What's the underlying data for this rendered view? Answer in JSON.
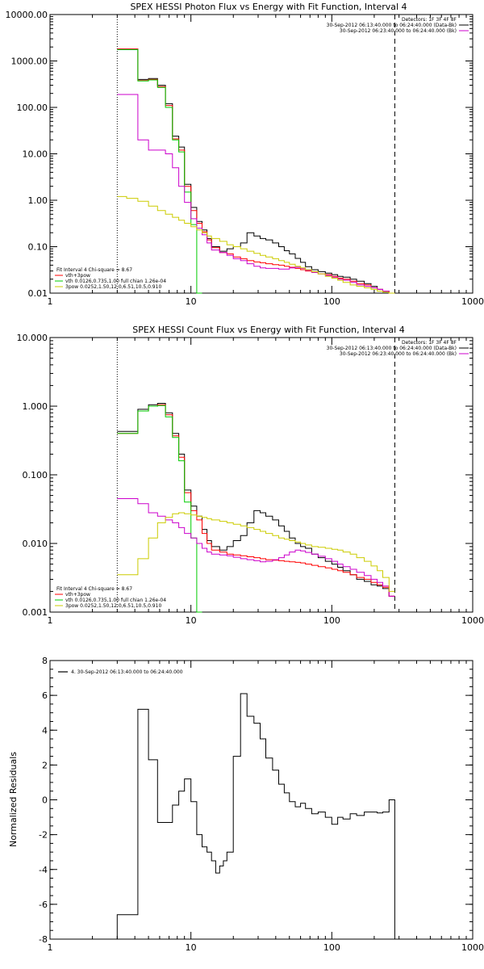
{
  "chart_data": [
    {
      "type": "line",
      "title": "SPEX HESSI Photon Flux vs Energy with Fit Function, Interval 4",
      "xscale": "log",
      "yscale": "log",
      "xlim": [
        1,
        1000
      ],
      "ylim": [
        0.01,
        10000
      ],
      "xticks": [
        1,
        10,
        100,
        1000
      ],
      "xtick_labels": [
        "1",
        "10",
        "100",
        "1000"
      ],
      "yticks": [
        0.01,
        0.1,
        1,
        10,
        100,
        1000,
        10000
      ],
      "ytick_labels": [
        "0.01",
        "0.10",
        "1.00",
        "10.00",
        "100.00",
        "1000.00",
        "10000.00"
      ],
      "vlines": [
        {
          "x": 3,
          "style": "dotted"
        },
        {
          "x": 280,
          "style": "dashed"
        }
      ],
      "legend_top": {
        "lines": [
          {
            "text": "Detectors: 1F 3F 4F 8F",
            "color": ""
          },
          {
            "text": "30-Sep-2012 06:13:40.000 to 06:24:40.000 (Data-Bk)",
            "color": "#000000"
          },
          {
            "text": "30-Sep-2012 06:23:40.000 to 06:24:40.000 (Bk)",
            "color": "#cc00cc"
          }
        ]
      },
      "legend_bottom": {
        "lines": [
          {
            "text": "Fit Interval  4   Chi-square = 8.67",
            "color": ""
          },
          {
            "text": "vth+3pow",
            "color": "#ff0000"
          },
          {
            "text": "vth  0.0126,0.735,1.00  full chian 1.26e-04",
            "color": "#00cc00"
          },
          {
            "text": "3pow  0.0252,1.50,12.0,6.51,10.5,0.910",
            "color": "#cccc00"
          }
        ]
      },
      "series": [
        {
          "color": "#000000",
          "edges": [
            3,
            3.5,
            4.2,
            5,
            5.8,
            6.6,
            7.4,
            8.2,
            9,
            10,
            11,
            12,
            13,
            14,
            16,
            18,
            20,
            22.5,
            25,
            28,
            31,
            34,
            38,
            42,
            46,
            50,
            55,
            60,
            65,
            72,
            80,
            90,
            100,
            110,
            120,
            135,
            150,
            170,
            190,
            210,
            230,
            255,
            280
          ],
          "values": [
            1800,
            1800,
            400,
            420,
            300,
            120,
            24,
            14,
            2.2,
            0.7,
            0.35,
            0.23,
            0.15,
            0.1,
            0.08,
            0.09,
            0.1,
            0.12,
            0.2,
            0.17,
            0.15,
            0.14,
            0.12,
            0.1,
            0.082,
            0.07,
            0.056,
            0.046,
            0.037,
            0.032,
            0.029,
            0.027,
            0.025,
            0.023,
            0.022,
            0.02,
            0.018,
            0.016,
            0.014,
            0.012,
            0.011,
            0.01
          ]
        },
        {
          "color": "#ff0000",
          "edges": [
            3,
            3.5,
            4.2,
            5,
            5.8,
            6.6,
            7.4,
            8.2,
            9,
            10,
            11,
            12,
            13,
            14,
            16,
            18,
            20,
            22.5,
            25,
            28,
            31,
            34,
            38,
            42,
            46,
            50,
            55,
            60,
            65,
            72,
            80,
            90,
            100,
            110,
            120,
            135,
            150,
            170,
            190,
            210,
            230,
            255,
            280
          ],
          "values": [
            1800,
            1800,
            380,
            400,
            280,
            110,
            21,
            12,
            2,
            0.6,
            0.32,
            0.21,
            0.14,
            0.095,
            0.075,
            0.07,
            0.06,
            0.055,
            0.05,
            0.047,
            0.045,
            0.043,
            0.041,
            0.04,
            0.038,
            0.036,
            0.034,
            0.032,
            0.03,
            0.028,
            0.026,
            0.025,
            0.023,
            0.021,
            0.02,
            0.018,
            0.016,
            0.015,
            0.013,
            0.012,
            0.011,
            0.01
          ]
        },
        {
          "color": "#00cc00",
          "edges": [
            3,
            3.5,
            4.2,
            5,
            5.8,
            6.6,
            7.4,
            8.2,
            9,
            10,
            11,
            12
          ],
          "values": [
            1750,
            1750,
            370,
            390,
            270,
            100,
            20,
            11,
            1.5,
            0.3,
            0.01
          ]
        },
        {
          "color": "#cc00cc",
          "edges": [
            3,
            3.5,
            4.2,
            5,
            5.8,
            6.6,
            7.4,
            8.2,
            9,
            10,
            11,
            12,
            13,
            14,
            16,
            18,
            20,
            22.5,
            25,
            28,
            31,
            34,
            38,
            42,
            46,
            50,
            55,
            60,
            65,
            72,
            80,
            90,
            100,
            110,
            120,
            135,
            150,
            170,
            190,
            210,
            230,
            255,
            280
          ],
          "values": [
            190,
            190,
            20,
            12,
            12,
            10,
            5,
            2,
            0.9,
            0.4,
            0.25,
            0.18,
            0.12,
            0.085,
            0.075,
            0.065,
            0.055,
            0.05,
            0.043,
            0.038,
            0.035,
            0.034,
            0.034,
            0.033,
            0.033,
            0.035,
            0.036,
            0.034,
            0.031,
            0.028,
            0.026,
            0.024,
            0.022,
            0.02,
            0.019,
            0.017,
            0.015,
            0.014,
            0.013,
            0.012,
            0.011,
            0.01
          ]
        },
        {
          "color": "#cccc00",
          "edges": [
            3,
            3.5,
            4.2,
            5,
            5.8,
            6.6,
            7.4,
            8.2,
            9,
            10,
            11,
            12,
            13,
            14,
            16,
            18,
            20,
            22.5,
            25,
            28,
            31,
            34,
            38,
            42,
            46,
            50,
            55,
            60,
            65,
            72,
            80,
            90,
            100,
            110,
            120,
            135,
            150,
            170,
            190,
            210,
            230,
            255,
            280
          ],
          "values": [
            1.2,
            1.1,
            0.95,
            0.75,
            0.6,
            0.5,
            0.43,
            0.37,
            0.32,
            0.27,
            0.23,
            0.2,
            0.17,
            0.15,
            0.13,
            0.11,
            0.1,
            0.09,
            0.08,
            0.072,
            0.065,
            0.06,
            0.055,
            0.05,
            0.046,
            0.042,
            0.038,
            0.035,
            0.032,
            0.029,
            0.026,
            0.023,
            0.021,
            0.019,
            0.017,
            0.015,
            0.014,
            0.013,
            0.012,
            0.011,
            0.0105,
            0.01
          ]
        }
      ]
    },
    {
      "type": "line",
      "title": "SPEX HESSI Count Flux vs Energy with Fit Function, Interval 4",
      "xscale": "log",
      "yscale": "log",
      "xlim": [
        1,
        1000
      ],
      "ylim": [
        0.001,
        10
      ],
      "xticks": [
        1,
        10,
        100,
        1000
      ],
      "xtick_labels": [
        "1",
        "10",
        "100",
        "1000"
      ],
      "yticks": [
        0.001,
        0.01,
        0.1,
        1,
        10
      ],
      "ytick_labels": [
        "0.001",
        "0.010",
        "0.100",
        "1.000",
        "10.000"
      ],
      "vlines": [
        {
          "x": 3,
          "style": "dotted"
        },
        {
          "x": 280,
          "style": "dashed"
        }
      ],
      "legend_top": {
        "lines": [
          {
            "text": "Detectors: 1F 3F 4F 8F",
            "color": ""
          },
          {
            "text": "30-Sep-2012 06:13:40.000 to 06:24:40.000 (Data-Bk)",
            "color": "#000000"
          },
          {
            "text": "30-Sep-2012 06:23:40.000 to 06:24:40.000 (Bk)",
            "color": "#cc00cc"
          }
        ]
      },
      "legend_bottom": {
        "lines": [
          {
            "text": "Fit Interval  4   Chi-square = 8.67",
            "color": ""
          },
          {
            "text": "vth+3pow",
            "color": "#ff0000"
          },
          {
            "text": "vth  0.0126,0.735,1.00  full chian 1.26e-04",
            "color": "#00cc00"
          },
          {
            "text": "3pow  0.0252,1.50,12.0,6.51,10.5,0.910",
            "color": "#cccc00"
          }
        ]
      },
      "series": [
        {
          "color": "#000000",
          "edges": [
            3,
            3.5,
            4.2,
            5,
            5.8,
            6.6,
            7.4,
            8.2,
            9,
            10,
            11,
            12,
            13,
            14,
            16,
            18,
            20,
            22.5,
            25,
            28,
            31,
            34,
            38,
            42,
            46,
            50,
            55,
            60,
            65,
            72,
            80,
            90,
            100,
            110,
            120,
            135,
            150,
            170,
            190,
            210,
            230,
            255,
            280
          ],
          "values": [
            0.43,
            0.43,
            0.9,
            1.05,
            1.1,
            0.8,
            0.4,
            0.2,
            0.06,
            0.035,
            0.025,
            0.016,
            0.011,
            0.009,
            0.008,
            0.009,
            0.011,
            0.013,
            0.02,
            0.03,
            0.028,
            0.025,
            0.022,
            0.018,
            0.015,
            0.012,
            0.01,
            0.009,
            0.0085,
            0.007,
            0.0062,
            0.0055,
            0.005,
            0.0045,
            0.004,
            0.0035,
            0.003,
            0.0028,
            0.0025,
            0.0024,
            0.0022,
            0.0017
          ]
        },
        {
          "color": "#ff0000",
          "edges": [
            3,
            3.5,
            4.2,
            5,
            5.8,
            6.6,
            7.4,
            8.2,
            9,
            10,
            11,
            12,
            13,
            14,
            16,
            18,
            20,
            22.5,
            25,
            28,
            31,
            34,
            38,
            42,
            46,
            50,
            55,
            60,
            65,
            72,
            80,
            90,
            100,
            110,
            120,
            135,
            150,
            170,
            190,
            210,
            230,
            255,
            280
          ],
          "values": [
            0.4,
            0.4,
            0.85,
            1,
            1.05,
            0.75,
            0.37,
            0.18,
            0.055,
            0.03,
            0.022,
            0.014,
            0.01,
            0.008,
            0.0075,
            0.007,
            0.0068,
            0.0066,
            0.0064,
            0.0062,
            0.006,
            0.0058,
            0.0057,
            0.0056,
            0.0055,
            0.0054,
            0.0053,
            0.0052,
            0.005,
            0.0048,
            0.0046,
            0.0044,
            0.0042,
            0.004,
            0.0038,
            0.0035,
            0.0032,
            0.003,
            0.0027,
            0.0025,
            0.0023,
            0.0017
          ]
        },
        {
          "color": "#00cc00",
          "edges": [
            3,
            3.5,
            4.2,
            5,
            5.8,
            6.6,
            7.4,
            8.2,
            9,
            10,
            11,
            12
          ],
          "values": [
            0.4,
            0.4,
            0.85,
            1,
            1.02,
            0.7,
            0.35,
            0.16,
            0.04,
            0.012,
            0.001
          ]
        },
        {
          "color": "#cc00cc",
          "edges": [
            3,
            3.5,
            4.2,
            5,
            5.8,
            6.6,
            7.4,
            8.2,
            9,
            10,
            11,
            12,
            13,
            14,
            16,
            18,
            20,
            22.5,
            25,
            28,
            31,
            34,
            38,
            42,
            46,
            50,
            55,
            60,
            65,
            72,
            80,
            90,
            100,
            110,
            120,
            135,
            150,
            170,
            190,
            210,
            230,
            255,
            280
          ],
          "values": [
            0.045,
            0.045,
            0.038,
            0.028,
            0.025,
            0.022,
            0.02,
            0.017,
            0.014,
            0.012,
            0.01,
            0.0085,
            0.0075,
            0.007,
            0.0068,
            0.0066,
            0.0063,
            0.006,
            0.0058,
            0.0056,
            0.0054,
            0.0055,
            0.0058,
            0.0062,
            0.0068,
            0.0075,
            0.008,
            0.0078,
            0.0074,
            0.007,
            0.0065,
            0.006,
            0.0055,
            0.005,
            0.0046,
            0.0042,
            0.0038,
            0.0034,
            0.003,
            0.0027,
            0.0024,
            0.0017
          ]
        },
        {
          "color": "#cccc00",
          "edges": [
            3,
            3.5,
            4.2,
            5,
            5.8,
            6.6,
            7.4,
            8.2,
            9,
            10,
            11,
            12,
            13,
            14,
            16,
            18,
            20,
            22.5,
            25,
            28,
            31,
            34,
            38,
            42,
            46,
            50,
            55,
            60,
            65,
            72,
            80,
            90,
            100,
            110,
            120,
            135,
            150,
            170,
            190,
            210,
            230,
            255,
            280
          ],
          "values": [
            0.0035,
            0.0035,
            0.006,
            0.012,
            0.02,
            0.024,
            0.027,
            0.028,
            0.027,
            0.026,
            0.025,
            0.024,
            0.023,
            0.022,
            0.021,
            0.02,
            0.019,
            0.018,
            0.017,
            0.016,
            0.015,
            0.014,
            0.013,
            0.012,
            0.0115,
            0.011,
            0.0105,
            0.01,
            0.0095,
            0.009,
            0.0088,
            0.0085,
            0.0082,
            0.008,
            0.0075,
            0.007,
            0.0062,
            0.0055,
            0.0047,
            0.004,
            0.0032,
            0.002
          ]
        }
      ]
    },
    {
      "type": "line",
      "title": "",
      "ylabel": "Normalized Residuals",
      "xscale": "log",
      "yscale": "linear",
      "xlim": [
        1,
        1000
      ],
      "ylim": [
        -8,
        8
      ],
      "xticks": [
        1,
        10,
        100,
        1000
      ],
      "xtick_labels": [
        "1",
        "10",
        "100",
        "1000"
      ],
      "yticks": [
        -8,
        -6,
        -4,
        -2,
        0,
        2,
        4,
        6,
        8
      ],
      "ytick_labels": [
        "-8",
        "-6",
        "-4",
        "-2",
        "0",
        "2",
        "4",
        "6",
        "8"
      ],
      "legend_top": {
        "lines": [
          {
            "text": "4. 30-Sep-2012 06:13:40.000 to 06:24:40.000",
            "color": "#000000"
          }
        ]
      },
      "series": [
        {
          "color": "#000000",
          "edges": [
            3,
            4.2,
            5,
            5.8,
            6.6,
            7.4,
            8.2,
            9,
            10,
            11,
            12,
            13,
            14,
            15,
            16,
            17,
            18,
            20,
            22.5,
            25,
            28,
            31,
            34,
            38,
            42,
            46,
            50,
            55,
            60,
            65,
            72,
            80,
            90,
            100,
            110,
            120,
            135,
            150,
            170,
            190,
            210,
            230,
            255,
            280
          ],
          "values": [
            -6.6,
            5.2,
            2.3,
            -1.3,
            -1.3,
            -0.3,
            0.5,
            1.2,
            -0.1,
            -2,
            -2.7,
            -3,
            -3.5,
            -4.2,
            -3.8,
            -3.5,
            -3,
            2.5,
            6.1,
            4.8,
            4.4,
            3.5,
            2.4,
            1.7,
            0.9,
            0.4,
            -0.1,
            -0.4,
            -0.2,
            -0.5,
            -0.8,
            -0.7,
            -1.0,
            -1.4,
            -1.0,
            -1.1,
            -0.8,
            -0.9,
            -0.7,
            -0.7,
            -0.75,
            -0.7,
            0
          ],
          "drop_to": -8.0
        }
      ]
    }
  ]
}
